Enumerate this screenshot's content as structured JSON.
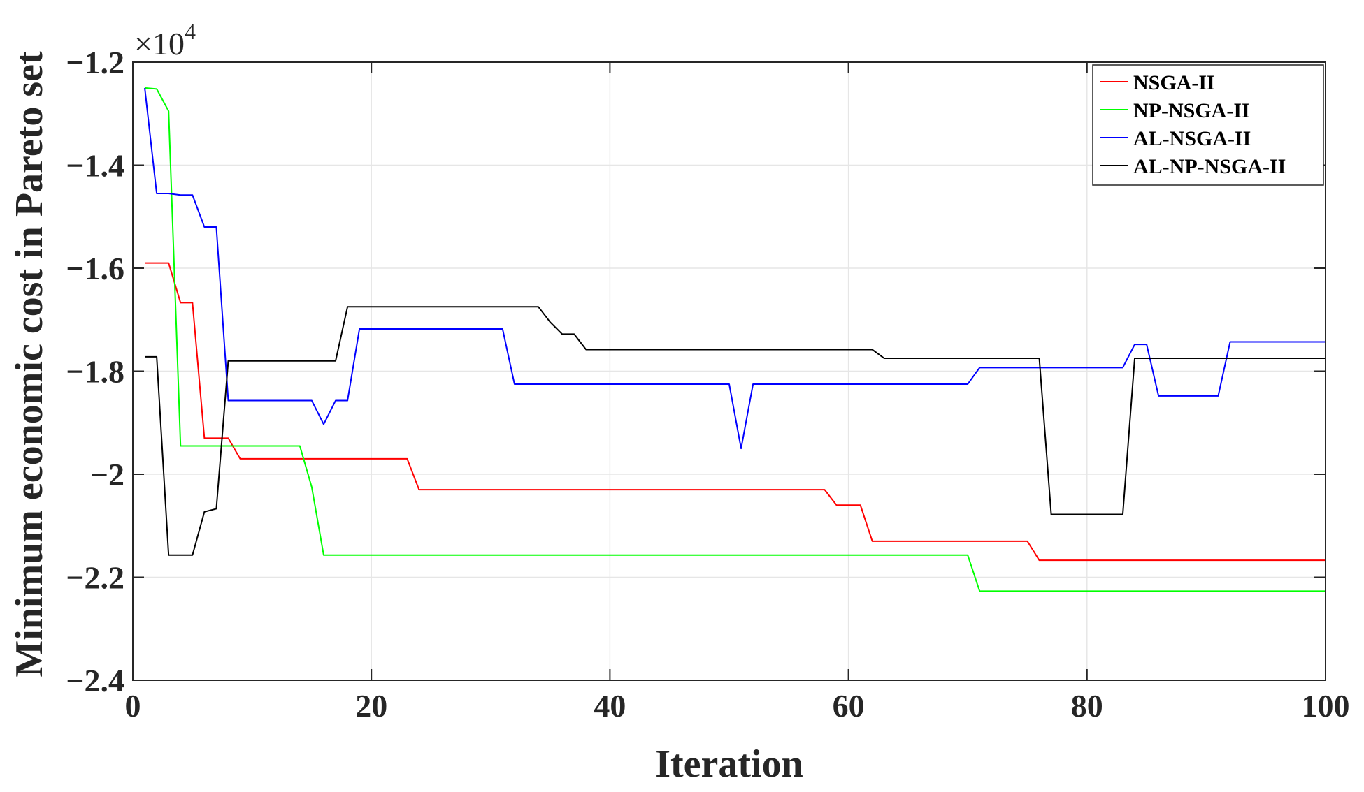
{
  "chart_data": {
    "type": "line",
    "title": "",
    "xlabel": "Iteration",
    "ylabel": "Minimum economic cost in Pareto set",
    "y_multiplier": {
      "base": "×10",
      "exponent": "4"
    },
    "xlim": [
      0,
      100
    ],
    "ylim": [
      -2.4,
      -1.2
    ],
    "x_ticks": [
      0,
      20,
      40,
      60,
      80,
      100
    ],
    "x_tick_labels": [
      "0",
      "20",
      "40",
      "60",
      "80",
      "100"
    ],
    "y_ticks": [
      -1.2,
      -1.4,
      -1.6,
      -1.8,
      -2.0,
      -2.2,
      -2.4
    ],
    "y_tick_labels": [
      "-1.2",
      "-1.4",
      "-1.6",
      "-1.8",
      "-2",
      "-2.2",
      "-2.4"
    ],
    "grid": true,
    "legend": "top-right",
    "series": [
      {
        "name": "NSGA-II",
        "color": "#ff0000",
        "points": [
          [
            1,
            -1.59
          ],
          [
            3,
            -1.59
          ],
          [
            4,
            -1.667
          ],
          [
            5,
            -1.667
          ],
          [
            6,
            -1.93
          ],
          [
            8,
            -1.93
          ],
          [
            9,
            -1.97
          ],
          [
            23,
            -1.97
          ],
          [
            24,
            -2.03
          ],
          [
            58,
            -2.03
          ],
          [
            59,
            -2.06
          ],
          [
            61,
            -2.06
          ],
          [
            62,
            -2.13
          ],
          [
            75,
            -2.13
          ],
          [
            76,
            -2.167
          ],
          [
            100,
            -2.167
          ]
        ]
      },
      {
        "name": "NP-NSGA-II",
        "color": "#00ff00",
        "points": [
          [
            1,
            -1.25
          ],
          [
            2,
            -1.252
          ],
          [
            3,
            -1.295
          ],
          [
            4,
            -1.945
          ],
          [
            14,
            -1.945
          ],
          [
            15,
            -2.025
          ],
          [
            16,
            -2.157
          ],
          [
            70,
            -2.157
          ],
          [
            71,
            -2.227
          ],
          [
            100,
            -2.227
          ]
        ]
      },
      {
        "name": "AL-NSGA-II",
        "color": "#0000ff",
        "points": [
          [
            1,
            -1.25
          ],
          [
            2,
            -1.455
          ],
          [
            3,
            -1.455
          ],
          [
            4,
            -1.458
          ],
          [
            5,
            -1.458
          ],
          [
            6,
            -1.52
          ],
          [
            7,
            -1.52
          ],
          [
            8,
            -1.857
          ],
          [
            15,
            -1.857
          ],
          [
            16,
            -1.903
          ],
          [
            17,
            -1.857
          ],
          [
            18,
            -1.857
          ],
          [
            19,
            -1.718
          ],
          [
            31,
            -1.718
          ],
          [
            32,
            -1.825
          ],
          [
            50,
            -1.825
          ],
          [
            51,
            -1.95
          ],
          [
            52,
            -1.825
          ],
          [
            70,
            -1.825
          ],
          [
            71,
            -1.793
          ],
          [
            83,
            -1.793
          ],
          [
            84,
            -1.748
          ],
          [
            85,
            -1.748
          ],
          [
            86,
            -1.848
          ],
          [
            91,
            -1.848
          ],
          [
            92,
            -1.743
          ],
          [
            100,
            -1.743
          ]
        ]
      },
      {
        "name": "AL-NP-NSGA-II",
        "color": "#000000",
        "points": [
          [
            1,
            -1.772
          ],
          [
            2,
            -1.772
          ],
          [
            3,
            -2.157
          ],
          [
            5,
            -2.157
          ],
          [
            6,
            -2.073
          ],
          [
            7,
            -2.067
          ],
          [
            8,
            -1.78
          ],
          [
            17,
            -1.78
          ],
          [
            18,
            -1.675
          ],
          [
            34,
            -1.675
          ],
          [
            35,
            -1.705
          ],
          [
            36,
            -1.728
          ],
          [
            37,
            -1.728
          ],
          [
            38,
            -1.758
          ],
          [
            62,
            -1.758
          ],
          [
            63,
            -1.775
          ],
          [
            76,
            -1.775
          ],
          [
            77,
            -2.078
          ],
          [
            83,
            -2.078
          ],
          [
            84,
            -1.775
          ],
          [
            100,
            -1.775
          ]
        ]
      }
    ]
  }
}
